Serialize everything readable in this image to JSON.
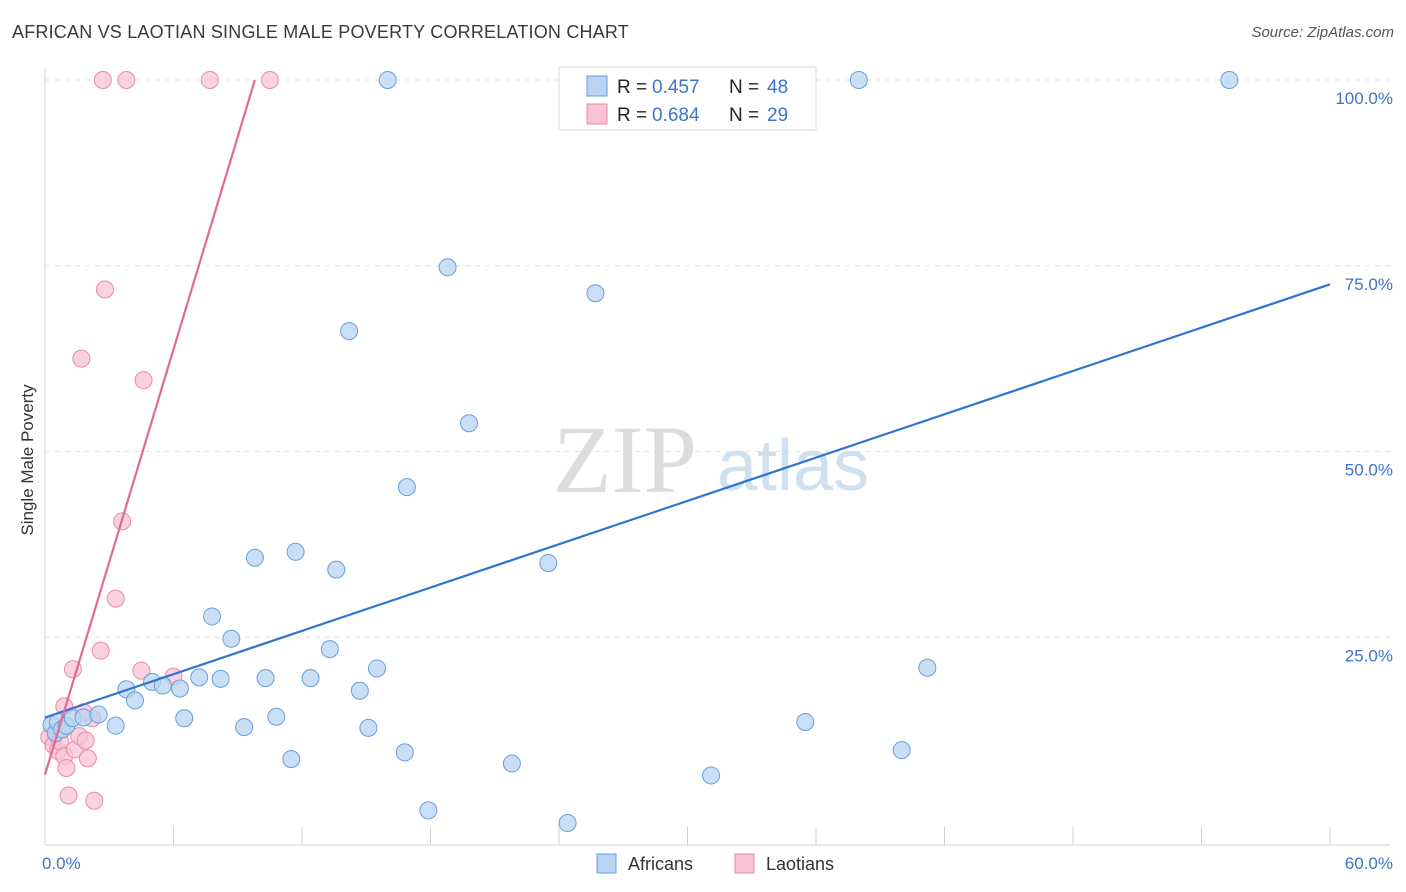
{
  "title": "AFRICAN VS LAOTIAN SINGLE MALE POVERTY CORRELATION CHART",
  "source": "Source: ZipAtlas.com",
  "watermark": {
    "zip": "ZIP",
    "atlas": "atlas"
  },
  "colors": {
    "africans_fill": "#b8d3f3",
    "africans_stroke": "#6a9fd8",
    "africans_line": "#2f74cf",
    "laotians_fill": "#f8c3d4",
    "laotians_stroke": "#e98aa9",
    "laotians_line": "#e06a97",
    "axis_text": "#3d73c9",
    "grid": "#e3e3e3"
  },
  "chart_data": {
    "type": "scatter",
    "title": "AFRICAN VS LAOTIAN SINGLE MALE POVERTY CORRELATION CHART",
    "xlabel": "",
    "ylabel": "Single Male Poverty",
    "xlim": [
      0,
      60
    ],
    "ylim": [
      0,
      100
    ],
    "x_tick_labels": [
      "0.0%",
      "60.0%"
    ],
    "y_ticks": [
      25,
      50,
      75,
      100
    ],
    "y_tick_labels": [
      "25.0%",
      "50.0%",
      "75.0%",
      "100.0%"
    ],
    "legend": [
      {
        "r_label": "R = ",
        "r_value": "0.457",
        "n_label": "N = ",
        "n_value": "48"
      },
      {
        "r_label": "R = ",
        "r_value": "0.684",
        "n_label": "N = ",
        "n_value": "29"
      }
    ],
    "series": [
      {
        "name": "Africans",
        "trend": {
          "x0": 0,
          "y0": 14.2,
          "x1": 60,
          "y1": 72.5
        },
        "points": [
          [
            0.3,
            13.2
          ],
          [
            0.5,
            12.1
          ],
          [
            0.6,
            13.6
          ],
          [
            0.8,
            12.6
          ],
          [
            1.0,
            13.1
          ],
          [
            1.3,
            14.1
          ],
          [
            1.8,
            14.2
          ],
          [
            2.5,
            14.6
          ],
          [
            3.3,
            13.1
          ],
          [
            3.8,
            18.0
          ],
          [
            4.2,
            16.5
          ],
          [
            5.0,
            19.0
          ],
          [
            5.5,
            18.5
          ],
          [
            6.3,
            18.1
          ],
          [
            6.5,
            14.1
          ],
          [
            7.2,
            19.6
          ],
          [
            7.8,
            27.8
          ],
          [
            8.2,
            19.4
          ],
          [
            8.7,
            24.8
          ],
          [
            9.3,
            12.9
          ],
          [
            9.8,
            35.7
          ],
          [
            10.3,
            19.5
          ],
          [
            10.8,
            14.3
          ],
          [
            11.5,
            8.6
          ],
          [
            11.7,
            36.5
          ],
          [
            12.4,
            19.5
          ],
          [
            13.3,
            23.4
          ],
          [
            13.6,
            34.1
          ],
          [
            14.2,
            66.2
          ],
          [
            14.7,
            17.8
          ],
          [
            15.1,
            12.8
          ],
          [
            15.5,
            20.8
          ],
          [
            16.0,
            100.0
          ],
          [
            16.8,
            9.5
          ],
          [
            16.9,
            45.2
          ],
          [
            17.9,
            1.7
          ],
          [
            18.8,
            74.8
          ],
          [
            19.8,
            53.8
          ],
          [
            21.8,
            8.0
          ],
          [
            23.5,
            35.0
          ],
          [
            24.4,
            0.0
          ],
          [
            25.7,
            71.3
          ],
          [
            31.1,
            6.4
          ],
          [
            35.5,
            13.6
          ],
          [
            38.0,
            100.0
          ],
          [
            40.0,
            9.8
          ],
          [
            41.2,
            20.9
          ],
          [
            55.3,
            100.0
          ]
        ]
      },
      {
        "name": "Laotians",
        "trend": {
          "x0": 0,
          "y0": 6.5,
          "x1": 9.8,
          "y1": 100.0
        },
        "points": [
          [
            0.2,
            11.6
          ],
          [
            0.4,
            10.5
          ],
          [
            0.5,
            12.3
          ],
          [
            0.6,
            9.7
          ],
          [
            0.7,
            11.0
          ],
          [
            0.9,
            9.0
          ],
          [
            1.0,
            7.4
          ],
          [
            1.1,
            3.7
          ],
          [
            1.3,
            20.7
          ],
          [
            1.4,
            9.9
          ],
          [
            1.6,
            11.7
          ],
          [
            1.7,
            62.5
          ],
          [
            1.9,
            11.1
          ],
          [
            2.0,
            8.7
          ],
          [
            2.2,
            14.1
          ],
          [
            2.3,
            3.0
          ],
          [
            2.6,
            23.2
          ],
          [
            2.7,
            100.0
          ],
          [
            2.8,
            71.8
          ],
          [
            3.3,
            30.2
          ],
          [
            3.6,
            40.6
          ],
          [
            3.8,
            100.0
          ],
          [
            4.5,
            20.5
          ],
          [
            4.6,
            59.6
          ],
          [
            6.0,
            19.7
          ],
          [
            7.7,
            100.0
          ],
          [
            10.5,
            100.0
          ],
          [
            0.9,
            15.7
          ],
          [
            1.8,
            14.9
          ]
        ]
      }
    ]
  },
  "bottom_legend": [
    "Africans",
    "Laotians"
  ]
}
